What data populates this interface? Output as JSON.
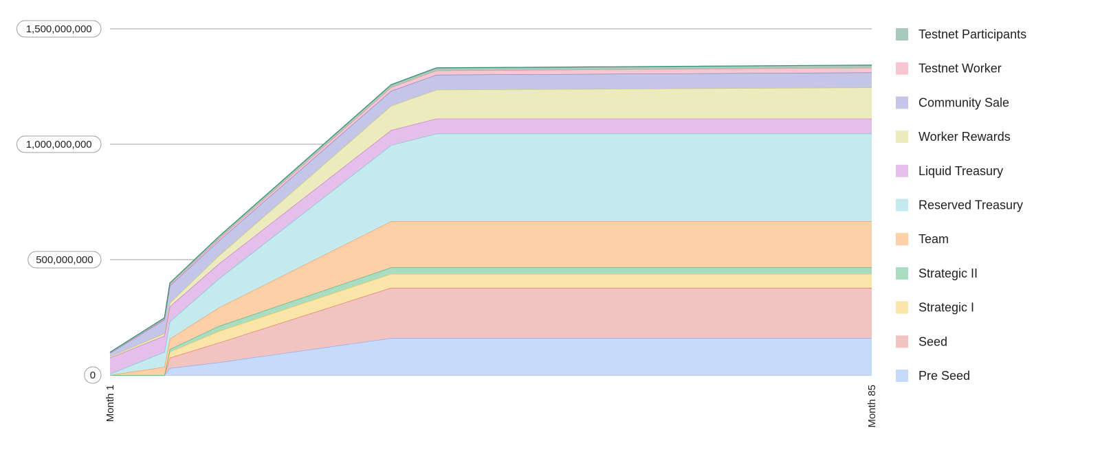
{
  "chart_data": {
    "type": "area",
    "stacked": true,
    "title": "",
    "xlabel": "",
    "ylabel": "",
    "ylim": [
      0,
      1500000000
    ],
    "y_ticks": [
      0,
      500000000,
      1000000000,
      1500000000
    ],
    "y_tick_labels": [
      "0",
      "500,000,000",
      "1,000,000,000",
      "1,500,000,000"
    ],
    "x_range": [
      1,
      85
    ],
    "x_ticks": [
      1,
      85
    ],
    "x_tick_labels": [
      "Month 1",
      "Month 85"
    ],
    "grid": true,
    "legend_position": "right",
    "x": [
      1,
      7,
      7.6,
      13,
      32,
      37,
      85
    ],
    "series": [
      {
        "name": "Pre Seed",
        "color": "#c6dafb",
        "stroke": "#7aa6f0",
        "values": [
          0,
          0,
          30000000,
          55000000,
          160000000,
          160000000,
          160000000
        ]
      },
      {
        "name": "Seed",
        "color": "#f2c4c1",
        "stroke": "#e06b63",
        "values": [
          0,
          0,
          45000000,
          85000000,
          218000000,
          218000000,
          218000000
        ]
      },
      {
        "name": "Strategic I",
        "color": "#f9e5a8",
        "stroke": "#f0c24a",
        "values": [
          0,
          0,
          25000000,
          50000000,
          60000000,
          60000000,
          60000000
        ]
      },
      {
        "name": "Strategic II",
        "color": "#a9dcc1",
        "stroke": "#3fb27f",
        "values": [
          0,
          0,
          12000000,
          22000000,
          28000000,
          28000000,
          28000000
        ]
      },
      {
        "name": "Team",
        "color": "#fdd0a8",
        "stroke": "#f0944a",
        "values": [
          0,
          35000000,
          45000000,
          80000000,
          200000000,
          200000000,
          200000000
        ]
      },
      {
        "name": "Reserved Treasury",
        "color": "#c4eaee",
        "stroke": "#69c3cf",
        "values": [
          5000000,
          65000000,
          75000000,
          125000000,
          330000000,
          380000000,
          380000000
        ]
      },
      {
        "name": "Liquid Treasury",
        "color": "#e4bfea",
        "stroke": "#c56bd1",
        "values": [
          70000000,
          70000000,
          65000000,
          65000000,
          65000000,
          65000000,
          65000000
        ]
      },
      {
        "name": "Worker Rewards",
        "color": "#ecebbd",
        "stroke": "#c9c36a",
        "values": [
          5000000,
          10000000,
          15000000,
          35000000,
          105000000,
          125000000,
          135000000
        ]
      },
      {
        "name": "Community Sale",
        "color": "#c3c6e6",
        "stroke": "#7c78c6",
        "values": [
          15000000,
          60000000,
          75000000,
          65000000,
          65000000,
          65000000,
          65000000
        ]
      },
      {
        "name": "Testnet Worker",
        "color": "#f6c7d0",
        "stroke": "#e98fa2",
        "values": [
          1000000,
          3000000,
          5000000,
          8000000,
          15000000,
          18000000,
          20000000
        ]
      },
      {
        "name": "Testnet Participants",
        "color": "#a9c9bb",
        "stroke": "#2e8b6e",
        "values": [
          3000000,
          5000000,
          7000000,
          10000000,
          12000000,
          12000000,
          12000000
        ]
      }
    ]
  },
  "legend": {
    "items": [
      {
        "label": "Testnet Participants",
        "color": "#a9c9bb"
      },
      {
        "label": "Testnet Worker",
        "color": "#f6c7d0"
      },
      {
        "label": "Community Sale",
        "color": "#c3c6e6"
      },
      {
        "label": "Worker Rewards",
        "color": "#ecebbd"
      },
      {
        "label": "Liquid Treasury",
        "color": "#e4bfea"
      },
      {
        "label": "Reserved Treasury",
        "color": "#c4eaee"
      },
      {
        "label": "Team",
        "color": "#fdd0a8"
      },
      {
        "label": "Strategic II",
        "color": "#a9dcc1"
      },
      {
        "label": "Strategic I",
        "color": "#f9e5a8"
      },
      {
        "label": "Seed",
        "color": "#f2c4c1"
      },
      {
        "label": "Pre Seed",
        "color": "#c6dafb"
      }
    ]
  }
}
